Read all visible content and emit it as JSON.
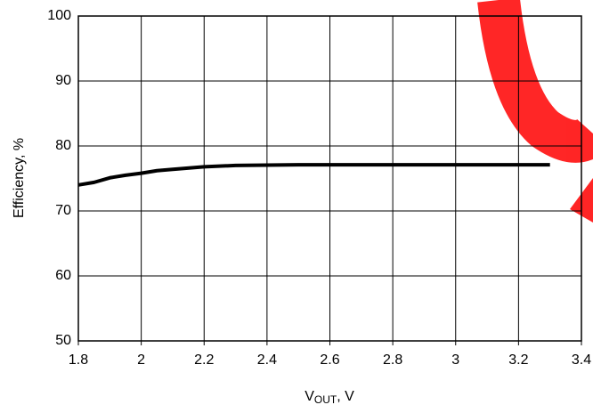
{
  "chart_data": {
    "type": "line",
    "ylabel": "Efficiency, %",
    "xlabel": [
      "V",
      "OUT",
      ", V"
    ],
    "x": [
      1.8,
      1.85,
      1.9,
      1.95,
      2.0,
      2.05,
      2.1,
      2.2,
      2.3,
      2.5,
      2.7,
      2.9,
      3.1,
      3.3
    ],
    "series": [
      {
        "color": "#000000",
        "values": [
          74,
          74.4,
          75.1,
          75.5,
          75.8,
          76.2,
          76.4,
          76.8,
          77,
          77.1,
          77.1,
          77.1,
          77.1,
          77.1
        ]
      }
    ],
    "xlim": [
      1.8,
      3.4
    ],
    "xticks": [
      1.8,
      2,
      2.2,
      2.4,
      2.6,
      2.8,
      3,
      3.2,
      3.4
    ],
    "ylim": [
      50,
      100
    ],
    "yticks": [
      50,
      60,
      70,
      80,
      90,
      100
    ],
    "grid": true
  }
}
